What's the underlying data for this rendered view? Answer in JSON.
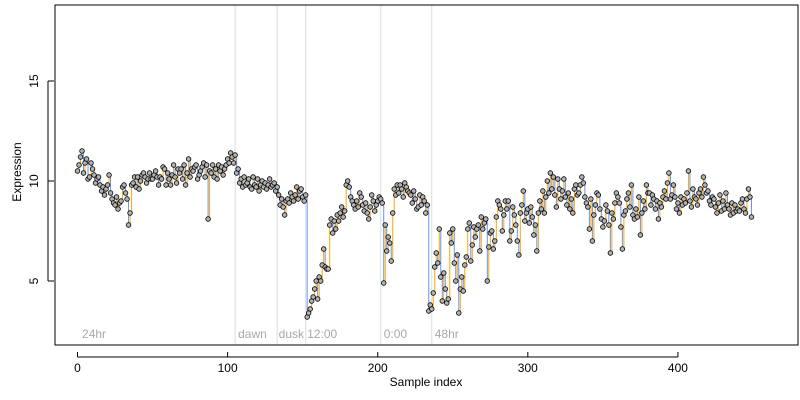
{
  "chart_data": {
    "type": "scatter",
    "title": "",
    "xlabel": "Sample index",
    "ylabel": "Expression",
    "xlim": [
      -15,
      480
    ],
    "ylim": [
      1.8,
      18.8
    ],
    "x_ticks": [
      0,
      100,
      200,
      300,
      400
    ],
    "y_ticks": [
      5,
      10,
      15
    ],
    "grid": false,
    "legend": "none",
    "colors": {
      "up_segment": "#FFA500",
      "down_segment": "#6495ED",
      "point_fill": "#b3b3b3",
      "point_stroke": "#000000",
      "boundary_line": "#dcdcdc",
      "section_label": "#a8a8a8"
    },
    "section_boundaries": [
      105,
      133,
      152,
      202,
      236
    ],
    "section_labels": [
      {
        "text": "24hr",
        "x": 3
      },
      {
        "text": "dawn",
        "x": 107
      },
      {
        "text": "dusk",
        "x": 134
      },
      {
        "text": "12:00",
        "x": 153
      },
      {
        "text": "0:00",
        "x": 204
      },
      {
        "text": "48hr",
        "x": 238
      }
    ],
    "series": [
      {
        "values": [
          10.5,
          10.8,
          11.2,
          11.5,
          10.4,
          10.9,
          11.1,
          10.1,
          10.2,
          10.9,
          10.6,
          10.3,
          9.9,
          10.1,
          10.2,
          9.8,
          9.5,
          9.7,
          9.3,
          9.6,
          9.8,
          10.3,
          9.4,
          9.1,
          8.9,
          8.8,
          9.2,
          8.6,
          8.9,
          9.0,
          9.7,
          9.8,
          9.4,
          9.1,
          7.8,
          8.4,
          9.8,
          9.9,
          10.2,
          9.7,
          10.2,
          9.6,
          10.0,
          10.3,
          10.4,
          10.2,
          9.9,
          10.1,
          10.4,
          10.1,
          10.1,
          10.3,
          10.5,
          10.2,
          9.8,
          10.2,
          10.1,
          10.7,
          10.6,
          9.8,
          10.4,
          10.1,
          9.8,
          10.3,
          10.8,
          10.2,
          9.9,
          10.6,
          10.4,
          10.6,
          10.1,
          10.8,
          9.8,
          10.4,
          11.1,
          10.2,
          10.6,
          10.5,
          10.7,
          10.8,
          10.1,
          10.3,
          10.5,
          10.7,
          10.9,
          10.2,
          10.8,
          8.1,
          10.5,
          10.4,
          10.8,
          10.2,
          10.6,
          10.1,
          10.8,
          10.5,
          10.7,
          10.3,
          10.6,
          10.8,
          11.1,
          10.9,
          11.4,
          11.2,
          10.9,
          11.3,
          10.4,
          10.6,
          9.9,
          10.1,
          9.7,
          10.2,
          9.8,
          9.9,
          10.1,
          9.7,
          9.6,
          10.2,
          9.8,
          9.7,
          10.1,
          9.5,
          9.8,
          10.0,
          9.7,
          9.9,
          9.6,
          9.8,
          10.1,
          9.7,
          9.8,
          9.9,
          9.5,
          9.7,
          9.3,
          8.8,
          9.1,
          8.7,
          8.3,
          9.0,
          9.1,
          8.9,
          9.4,
          9.2,
          9.0,
          9.3,
          9.7,
          9.1,
          9.5,
          9.6,
          9.2,
          9.0,
          9.3,
          3.2,
          3.4,
          3.6,
          4.0,
          4.2,
          4.6,
          5.0,
          4.1,
          5.2,
          5.0,
          5.8,
          6.6,
          5.7,
          5.6,
          5.6,
          7.8,
          8.1,
          7.4,
          8.0,
          7.6,
          8.3,
          8.0,
          8.4,
          8.7,
          8.2,
          8.5,
          9.8,
          10.0,
          9.7,
          9.2,
          9.0,
          8.8,
          8.6,
          9.0,
          8.7,
          9.4,
          9.2,
          8.8,
          8.5,
          8.9,
          8.4,
          8.1,
          8.7,
          9.3,
          9.0,
          8.5,
          8.8,
          9.0,
          9.2,
          9.1,
          8.9,
          4.9,
          7.8,
          6.5,
          7.2,
          6.9,
          6.0,
          8.4,
          9.6,
          9.3,
          9.8,
          9.4,
          9.8,
          9.6,
          9.2,
          9.9,
          9.7,
          9.5,
          9.4,
          9.3,
          8.9,
          9.5,
          9.1,
          8.6,
          8.7,
          9.3,
          8.8,
          9.2,
          9.0,
          8.4,
          8.8,
          3.5,
          3.8,
          3.6,
          4.4,
          5.7,
          6.4,
          5.9,
          7.6,
          5.2,
          4.0,
          5.4,
          4.6,
          3.9,
          4.1,
          7.4,
          6.9,
          7.6,
          5.9,
          5.0,
          6.3,
          3.4,
          4.6,
          5.2,
          4.5,
          5.8,
          6.2,
          7.6,
          7.9,
          6.0,
          6.8,
          7.7,
          7.2,
          7.6,
          7.8,
          6.5,
          8.2,
          7.6,
          7.9,
          8.1,
          5.0,
          6.7,
          7.4,
          7.5,
          6.6,
          7.0,
          8.2,
          9.0,
          8.8,
          8.6,
          7.5,
          8.3,
          9.0,
          8.6,
          9.0,
          7.0,
          7.5,
          8.7,
          8.3,
          7.8,
          7.0,
          6.3,
          8.4,
          8.8,
          9.5,
          8.0,
          8.4,
          8.6,
          7.9,
          8.7,
          8.2,
          7.3,
          7.8,
          6.5,
          8.4,
          9.0,
          8.6,
          9.5,
          8.4,
          9.2,
          10.0,
          9.4,
          10.4,
          9.6,
          10.2,
          9.3,
          8.7,
          10.1,
          9.6,
          9.1,
          9.5,
          10.1,
          9.2,
          8.8,
          9.4,
          8.6,
          9.1,
          8.4,
          9.6,
          9.8,
          9.3,
          9.4,
          9.8,
          10.2,
          9.9,
          9.2,
          8.9,
          8.7,
          7.6,
          9.1,
          7.0,
          8.3,
          8.8,
          9.4,
          9.3,
          8.6,
          8.1,
          7.7,
          8.0,
          8.8,
          8.5,
          7.8,
          6.4,
          8.4,
          8.1,
          8.9,
          9.4,
          9.2,
          8.9,
          7.7,
          6.6,
          8.3,
          8.5,
          9.1,
          9.4,
          8.7,
          9.8,
          8.3,
          8.1,
          8.6,
          8.2,
          9.2,
          7.3,
          8.4,
          9.0,
          8.6,
          9.8,
          9.4,
          9.4,
          8.8,
          9.3,
          9.1,
          8.6,
          9.0,
          8.1,
          8.9,
          8.7,
          9.2,
          9.5,
          9.1,
          9.9,
          10.4,
          9.1,
          9.3,
          9.8,
          9.2,
          8.6,
          8.9,
          8.4,
          9.2,
          8.8,
          9.1,
          8.9,
          9.4,
          10.5,
          9.0,
          8.7,
          9.6,
          9.2,
          9.1,
          8.8,
          9.4,
          9.6,
          9.2,
          10.2,
          9.8,
          9.4,
          9.5,
          9.0,
          8.8,
          9.2,
          9.1,
          8.7,
          8.4,
          8.9,
          9.3,
          8.5,
          9.0,
          8.6,
          9.4,
          8.8,
          8.6,
          8.3,
          8.9,
          8.4,
          8.8,
          8.5,
          8.6,
          8.5,
          8.9,
          9.1,
          8.6,
          8.4,
          9.1,
          9.6,
          9.2,
          8.2
        ]
      }
    ]
  }
}
